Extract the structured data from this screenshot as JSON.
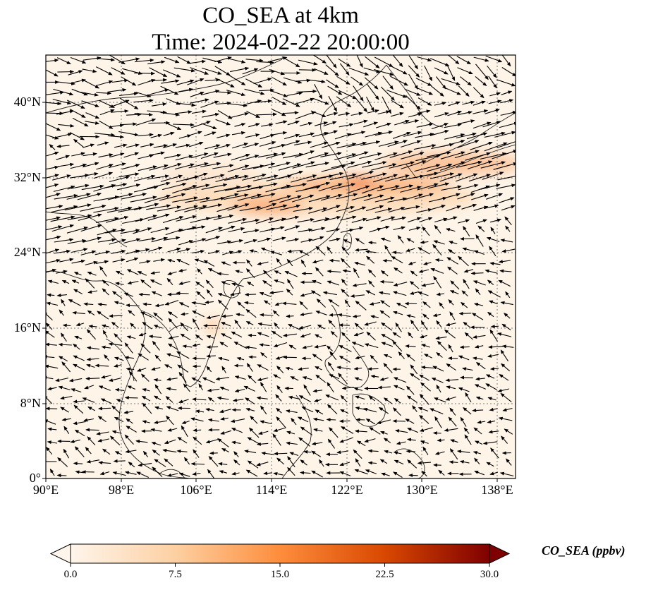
{
  "title_line1": "CO_SEA at 4km",
  "title_line2": "Time: 2024-02-22 20:00:00",
  "lat_ticks": [
    "40°N",
    "32°N",
    "24°N",
    "16°N",
    "8°N",
    "0°"
  ],
  "lon_ticks": [
    "90°E",
    "98°E",
    "106°E",
    "114°E",
    "122°E",
    "130°E",
    "138°E"
  ],
  "colorbar": {
    "label": "CO_SEA (ppbv)",
    "ticks": [
      "0.0",
      "7.5",
      "15.0",
      "22.5",
      "30.0"
    ],
    "min": 0,
    "max": 30,
    "colormap": [
      "#fff5eb",
      "#fdd0a2",
      "#fd8d3c",
      "#d94801",
      "#7f0000"
    ]
  },
  "map_extent": {
    "lon_min": 90,
    "lon_max": 140,
    "lat_min": 0,
    "lat_max": 45
  },
  "colors": {
    "land_outline": "#222222",
    "grid": "#777777",
    "arrow": "#000000",
    "background": "#fef6ea"
  }
}
